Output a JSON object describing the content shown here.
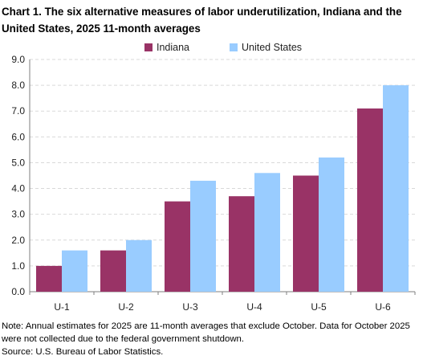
{
  "title": "Chart 1. The six alternative measures of labor underutilization, Indiana and the United States, 2025 11-month averages",
  "note": "Note: Annual estimates for 2025 are 11-month averages that exclude October. Data for October 2025 were not collected due to the federal government shutdown.",
  "source": "Source: U.S. Bureau of Labor Statistics.",
  "colors": {
    "indiana": "#993366",
    "united_states": "#99ccff",
    "grid": "#d9d9d9",
    "axis": "#7f7f7f"
  },
  "chart_data": {
    "type": "bar",
    "categories": [
      "U-1",
      "U-2",
      "U-3",
      "U-4",
      "U-5",
      "U-6"
    ],
    "series": [
      {
        "name": "Indiana",
        "values": [
          1.0,
          1.6,
          3.5,
          3.7,
          4.5,
          7.1
        ]
      },
      {
        "name": "United States",
        "values": [
          1.6,
          2.0,
          4.3,
          4.6,
          5.2,
          8.0
        ]
      }
    ],
    "ylim": [
      0,
      9
    ],
    "yticks": [
      "0.0",
      "1.0",
      "2.0",
      "3.0",
      "4.0",
      "5.0",
      "6.0",
      "7.0",
      "8.0",
      "9.0"
    ],
    "grid": true,
    "legend": "top-center"
  }
}
